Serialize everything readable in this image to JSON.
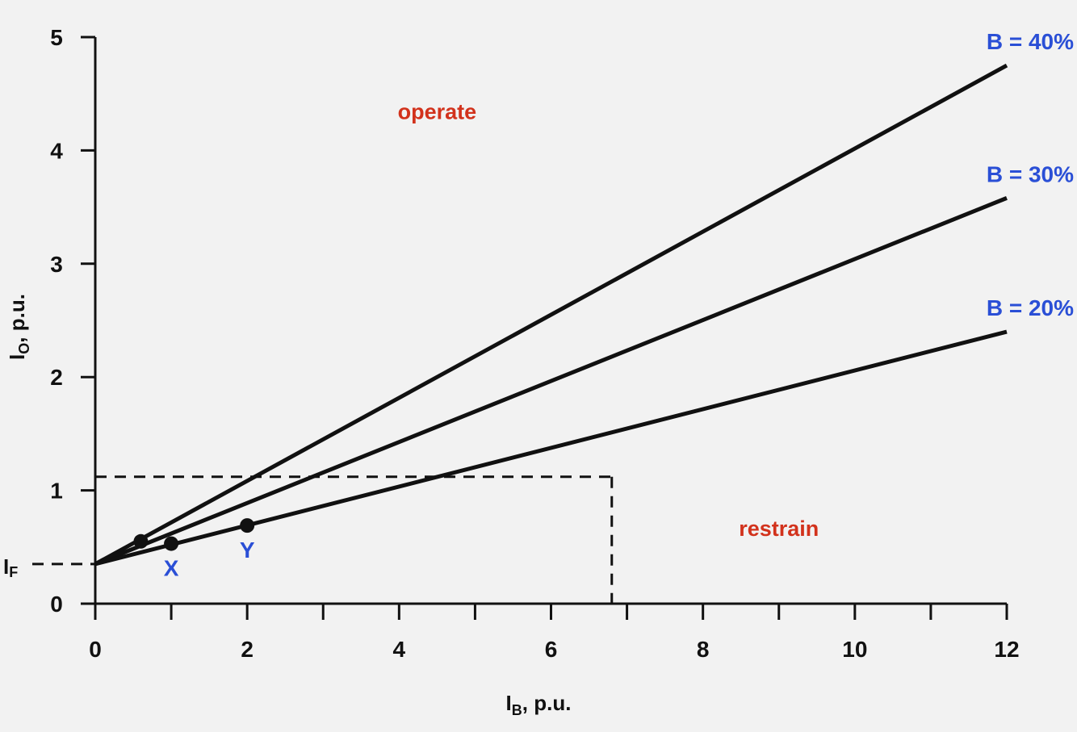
{
  "chart_data": {
    "type": "line",
    "xlabel": {
      "main": "I",
      "sub": "B",
      "rest": ", p.u."
    },
    "ylabel": {
      "main": "I",
      "sub": "O",
      "rest": ", p.u."
    },
    "xlim": [
      0,
      12
    ],
    "ylim": [
      0,
      5
    ],
    "x_ticks": [
      0,
      2,
      4,
      6,
      8,
      10,
      12
    ],
    "x_minor_ticks": [
      1,
      3,
      5,
      7,
      9,
      11
    ],
    "y_ticks": [
      0,
      1,
      2,
      3,
      4,
      5
    ],
    "grid": false,
    "series": [
      {
        "name": "B = 40%",
        "x": [
          0,
          12
        ],
        "y": [
          0.35,
          4.75
        ]
      },
      {
        "name": "B = 30%",
        "x": [
          0,
          12
        ],
        "y": [
          0.35,
          3.58
        ]
      },
      {
        "name": "B = 20%",
        "x": [
          0,
          12
        ],
        "y": [
          0.35,
          2.4
        ]
      }
    ],
    "points": [
      {
        "label": "",
        "x": 0.6,
        "y": 0.55
      },
      {
        "label": "X",
        "x": 1.0,
        "y": 0.53
      },
      {
        "label": "Y",
        "x": 2.0,
        "y": 0.69
      }
    ],
    "if_marker": {
      "label": {
        "main": "I",
        "sub": "F"
      },
      "y": 0.35
    },
    "dashed_box": {
      "x_max": 6.8,
      "y_max": 1.12
    },
    "regions": [
      {
        "label": "operate",
        "x": 4.5,
        "y": 4.35
      },
      {
        "label": "restrain",
        "x": 9.0,
        "y": 0.67
      }
    ],
    "colors": {
      "line": "#111111",
      "series_label": "#2a4fd6",
      "region_label": "#d2321c",
      "point_label": "#2a4fd6"
    }
  }
}
